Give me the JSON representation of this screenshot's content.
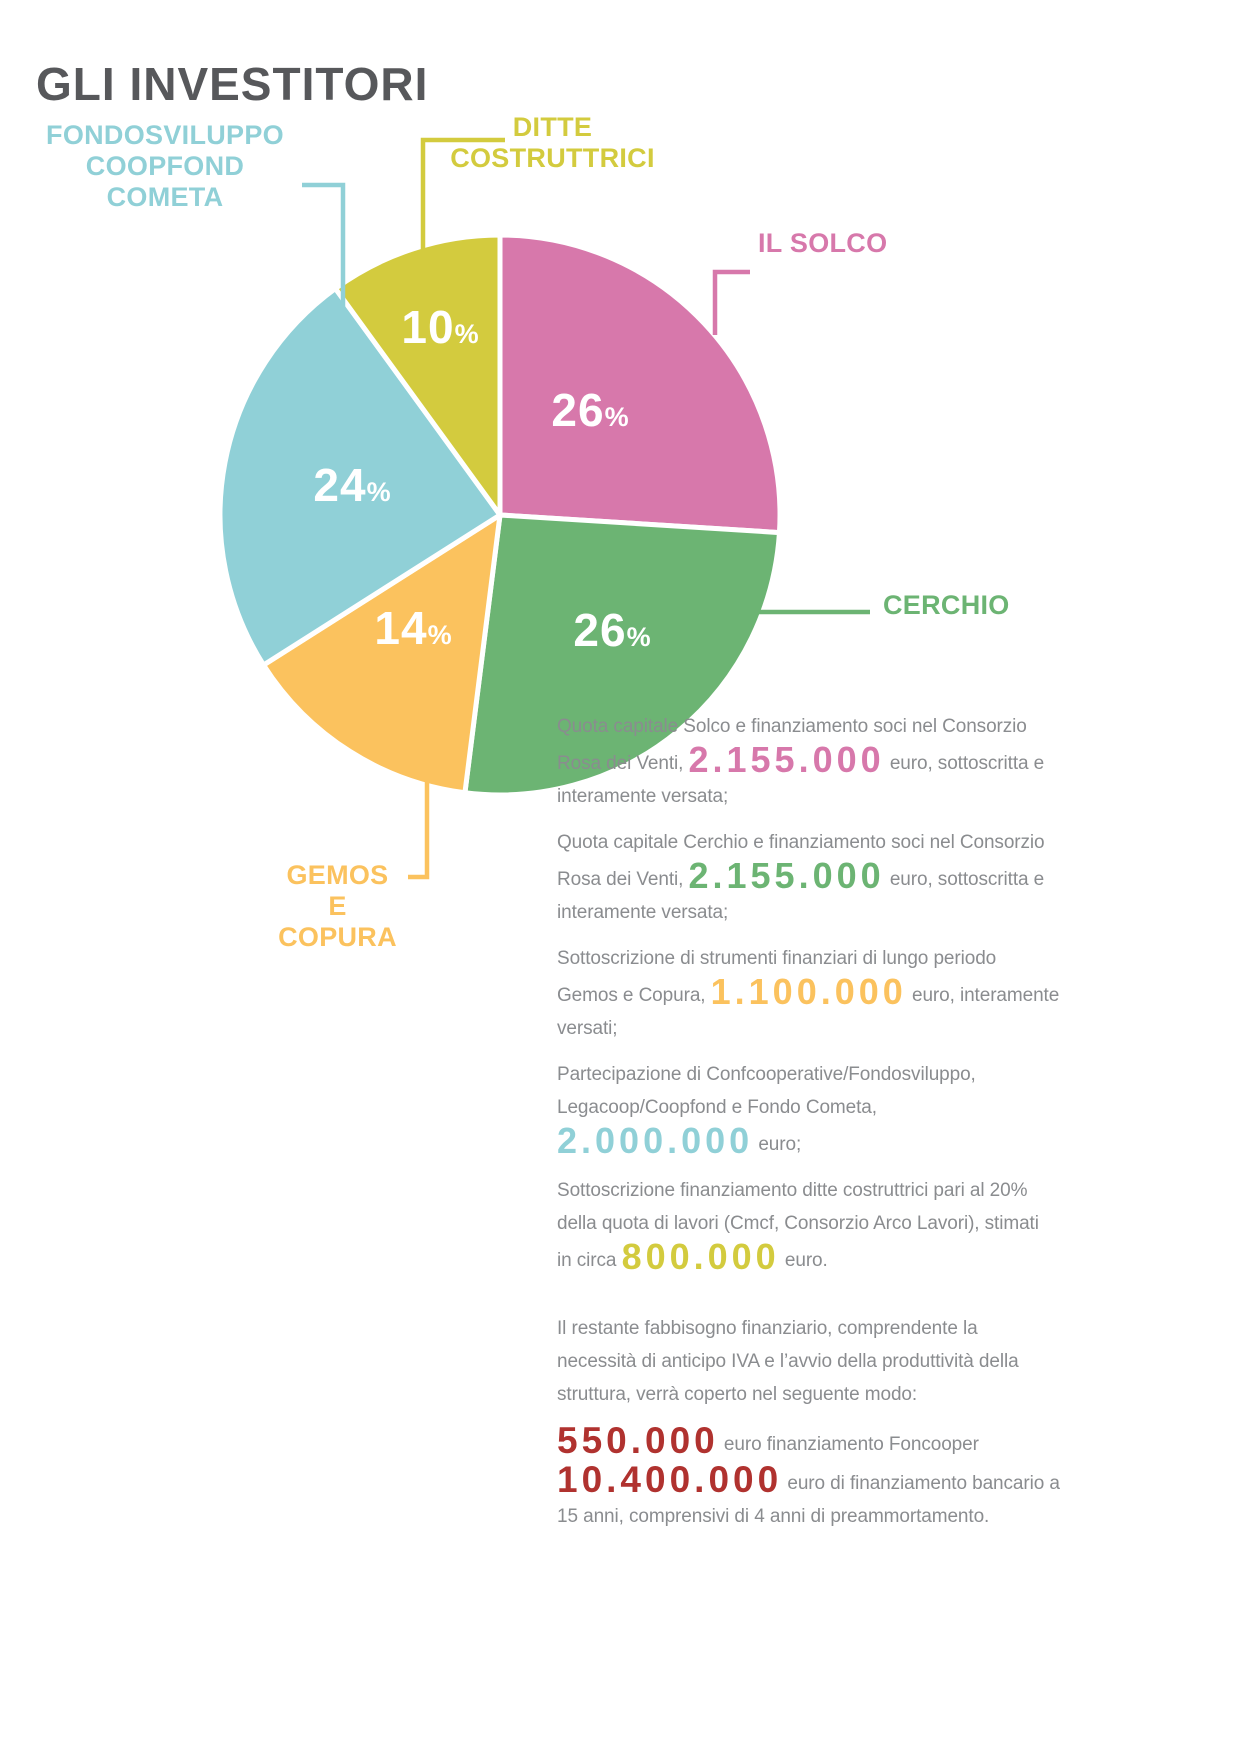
{
  "title": "GLI INVESTITORI",
  "colors": {
    "title_gray": "#57585b",
    "body_gray": "#8a8c8f",
    "dark_red": "#b0322f"
  },
  "chart_data": {
    "type": "pie",
    "title": "GLI INVESTITORI",
    "direction": "clockwise",
    "start_angle_deg": 0,
    "percent_sign": "%",
    "legend_position": "callout-labels",
    "slices": [
      {
        "label": "IL SOLCO",
        "value": 26,
        "color": "#d778ab"
      },
      {
        "label": "CERCHIO",
        "value": 26,
        "color": "#6cb473"
      },
      {
        "label": "GEMOS E COPURA",
        "value": 14,
        "color": "#fbc25e"
      },
      {
        "label": "FONDOSVILUPPO COOPFOND COMETA",
        "value": 24,
        "color": "#90d0d7"
      },
      {
        "label": "DITTE COSTRUTTRICI",
        "value": 10,
        "color": "#d3cb3e"
      }
    ]
  },
  "labels": {
    "fondosviluppo": "FONDOSVILUPPO\nCOOPFOND\nCOMETA",
    "ditte": "DITTE\nCOSTRUTTRICI",
    "solco": "IL SOLCO",
    "cerchio": "CERCHIO",
    "gemos": "GEMOS\nE\nCOPURA"
  },
  "investments": [
    {
      "text_before": "Quota capitale Solco e finanziamento soci nel Consorzio\nRosa dei Venti, ",
      "amount": "2.155.000",
      "amount_color": "#d778ab",
      "text_after": " euro, sottoscritta e\ninteramente versata;"
    },
    {
      "text_before": "Quota capitale Cerchio e finanziamento soci nel Consorzio\nRosa dei Venti, ",
      "amount": "2.155.000",
      "amount_color": "#6cb473",
      "text_after": " euro, sottoscritta e\ninteramente versata;"
    },
    {
      "text_before": "Sottoscrizione di strumenti finanziari di lungo periodo\nGemos e Copura, ",
      "amount": "1.100.000",
      "amount_color": "#fbc25e",
      "text_after": " euro, interamente\nversati;"
    },
    {
      "text_before": "Partecipazione di Confcooperative/Fondosviluppo,\nLegacoop/Coopfond e Fondo Cometa,\n",
      "amount": "2.000.000",
      "amount_color": "#90d0d7",
      "text_after": " euro;"
    },
    {
      "text_before": "Sottoscrizione finanziamento ditte costruttrici pari al 20%\ndella quota di lavori (Cmcf, Consorzio Arco Lavori), stimati\nin circa ",
      "amount": "800.000",
      "amount_color": "#d3cb3e",
      "text_after": " euro."
    }
  ],
  "closing": {
    "intro": "Il restante fabbisogno finanziario, comprendente la\nnecessità di anticipo IVA e l’avvio della produttività della\nstruttura, verrà coperto nel seguente modo:",
    "items": [
      {
        "amount": "550.000",
        "amount_color": "#b0322f",
        "text": " euro finanziamento Foncooper"
      },
      {
        "amount": "10.400.000",
        "amount_color": "#b0322f",
        "text": " euro di finanziamento bancario a\n15 anni, comprensivi di 4 anni di preammortamento."
      }
    ]
  }
}
